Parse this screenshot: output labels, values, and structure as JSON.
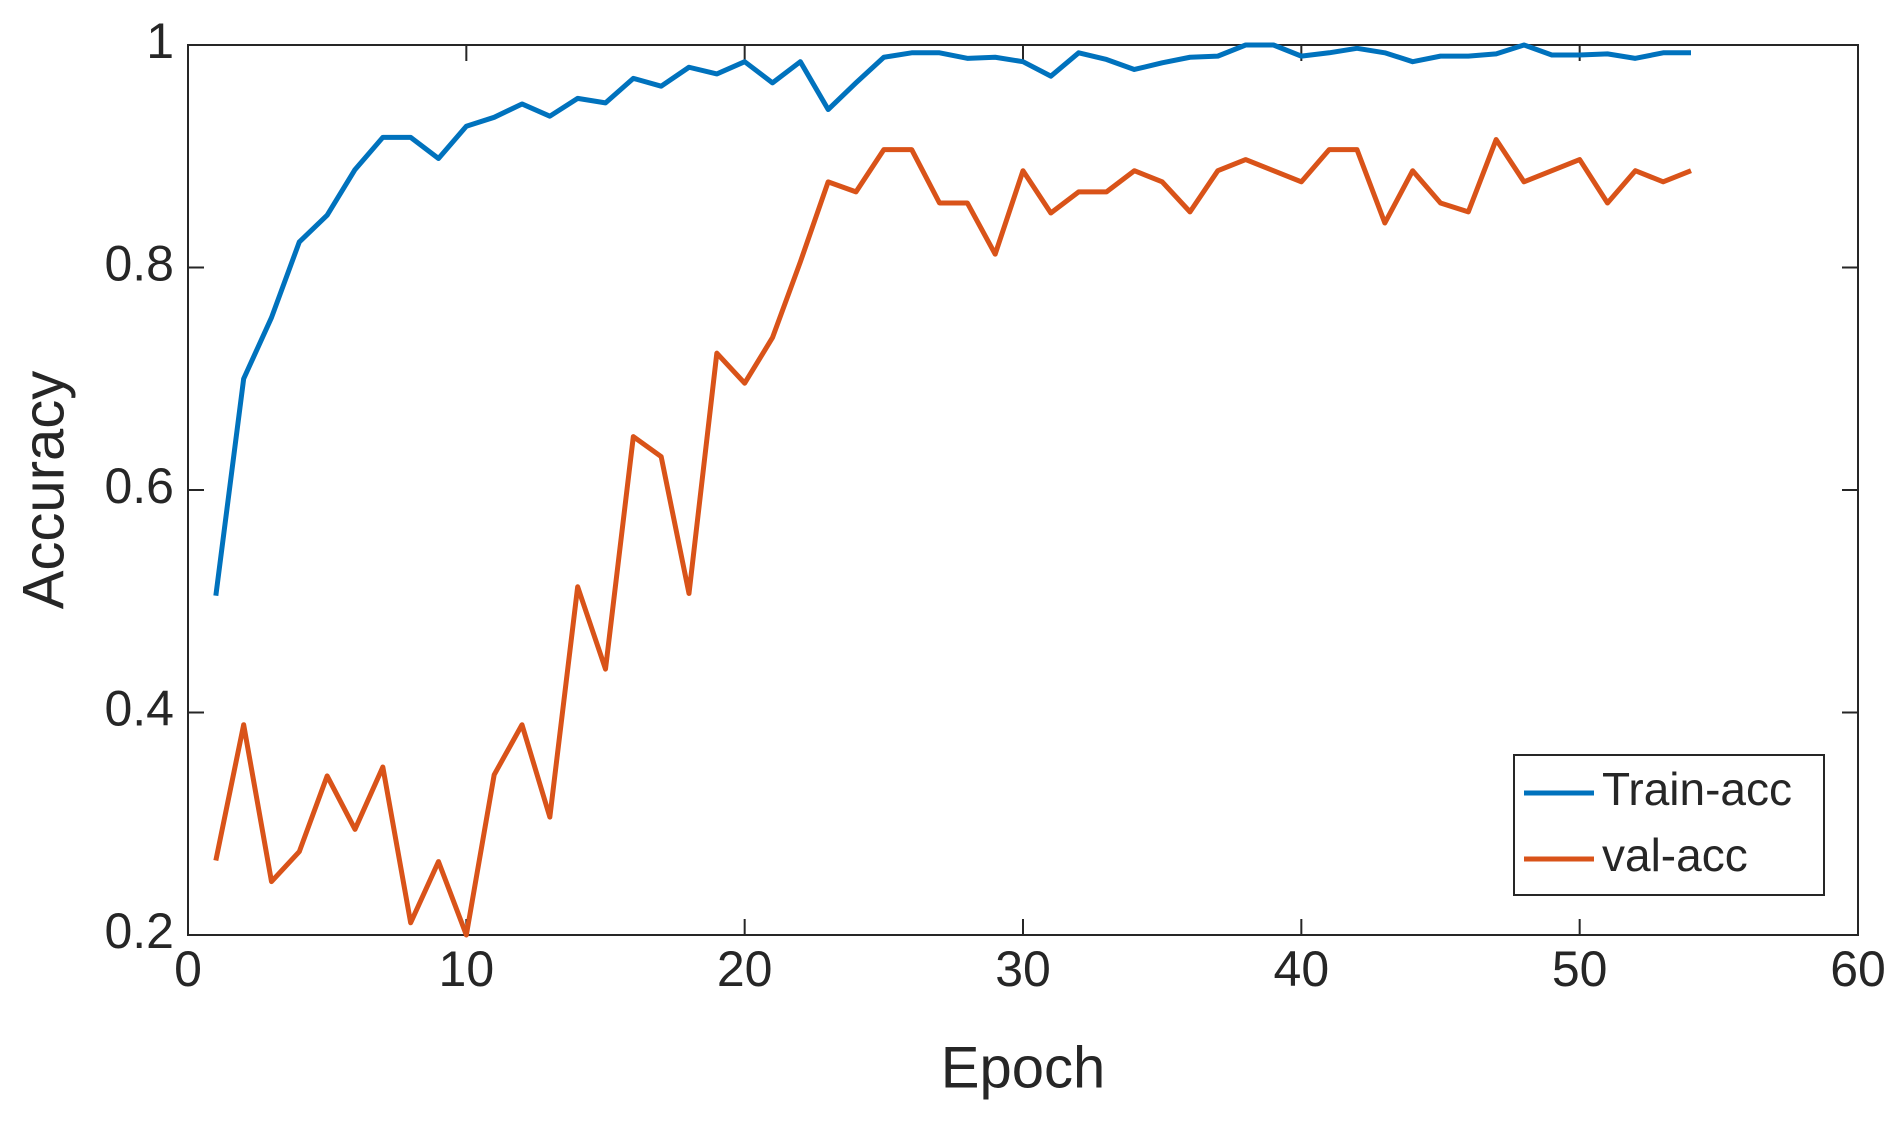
{
  "chart_data": {
    "type": "line",
    "x_label": "Epoch",
    "y_label": "Accuracy",
    "x": [
      1,
      2,
      3,
      4,
      5,
      6,
      7,
      8,
      9,
      10,
      11,
      12,
      13,
      14,
      15,
      16,
      17,
      18,
      19,
      20,
      21,
      22,
      23,
      24,
      25,
      26,
      27,
      28,
      29,
      30,
      31,
      32,
      33,
      34,
      35,
      36,
      37,
      38,
      39,
      40,
      41,
      42,
      43,
      44,
      45,
      46,
      47,
      48,
      49,
      50,
      51,
      52,
      53,
      54
    ],
    "series": [
      {
        "name": "Train-acc",
        "color": "#0072bd",
        "values": [
          0.505,
          0.7,
          0.755,
          0.823,
          0.847,
          0.888,
          0.917,
          0.917,
          0.898,
          0.927,
          0.935,
          0.947,
          0.936,
          0.952,
          0.948,
          0.97,
          0.963,
          0.98,
          0.974,
          0.985,
          0.966,
          0.985,
          0.942,
          0.966,
          0.989,
          0.993,
          0.993,
          0.988,
          0.989,
          0.985,
          0.972,
          0.993,
          0.987,
          0.978,
          0.984,
          0.989,
          0.99,
          1.0,
          1.0,
          0.99,
          0.993,
          0.997,
          0.993,
          0.985,
          0.99,
          0.99,
          0.992,
          1.0,
          0.991,
          0.991,
          0.992,
          0.988,
          0.993,
          0.993
        ]
      },
      {
        "name": "val-acc",
        "color": "#d95319",
        "values": [
          0.267,
          0.389,
          0.248,
          0.275,
          0.343,
          0.295,
          0.351,
          0.211,
          0.266,
          0.2,
          0.344,
          0.389,
          0.306,
          0.513,
          0.439,
          0.648,
          0.63,
          0.507,
          0.723,
          0.696,
          0.737,
          0.805,
          0.877,
          0.868,
          0.906,
          0.906,
          0.858,
          0.858,
          0.812,
          0.887,
          0.849,
          0.868,
          0.868,
          0.887,
          0.877,
          0.85,
          0.887,
          0.897,
          0.887,
          0.877,
          0.906,
          0.906,
          0.84,
          0.887,
          0.858,
          0.85,
          0.915,
          0.877,
          0.887,
          0.897,
          0.858,
          0.887,
          0.877,
          0.887
        ]
      }
    ],
    "xlim": [
      0,
      60
    ],
    "xticks": [
      0,
      10,
      20,
      30,
      40,
      50,
      60
    ],
    "ylim": [
      0.2,
      1
    ],
    "yticks": [
      0.2,
      0.4,
      0.6,
      0.8,
      1
    ],
    "grid": false,
    "legend": "lower right"
  }
}
